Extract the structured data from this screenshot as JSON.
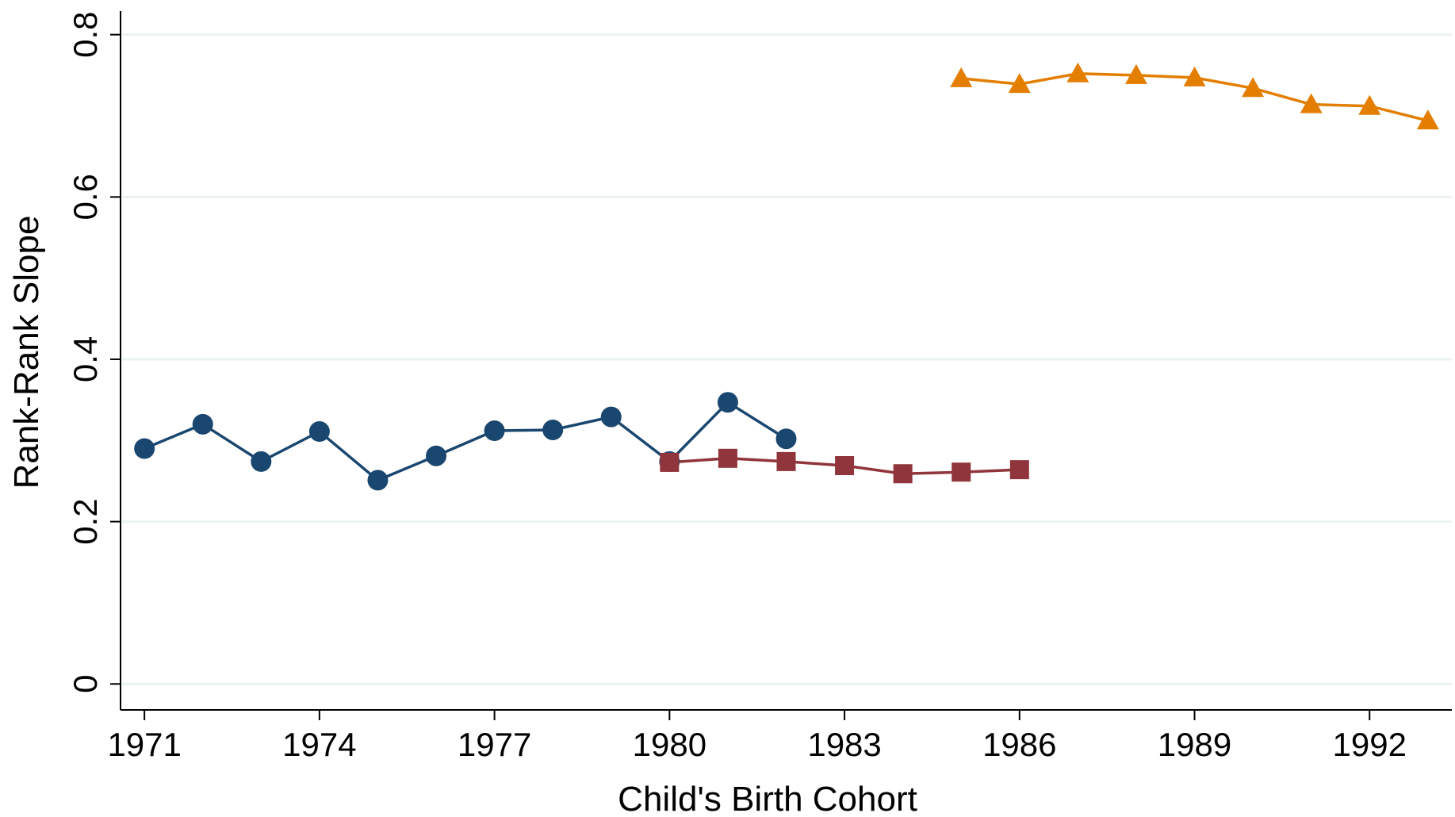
{
  "chart_data": {
    "type": "line",
    "x_label": "Child's Birth Cohort",
    "y_label": "Rank-Rank Slope",
    "x": [
      1971,
      1972,
      1973,
      1974,
      1975,
      1976,
      1977,
      1978,
      1979,
      1980,
      1981,
      1982,
      1983,
      1984,
      1985,
      1986,
      1987,
      1988,
      1989,
      1990,
      1991,
      1992,
      1993
    ],
    "series": [
      {
        "color": "#1a476f",
        "marker": "circle",
        "values": [
          0.29,
          0.32,
          0.274,
          0.311,
          0.251,
          0.281,
          0.312,
          0.313,
          0.329,
          0.274,
          0.347,
          0.302,
          null,
          null,
          null,
          null,
          null,
          null,
          null,
          null,
          null,
          null,
          null
        ]
      },
      {
        "color": "#90353b",
        "marker": "square",
        "values": [
          null,
          null,
          null,
          null,
          null,
          null,
          null,
          null,
          null,
          0.273,
          0.278,
          0.274,
          0.269,
          0.259,
          0.261,
          0.264,
          null,
          null,
          null,
          null,
          null,
          null,
          null
        ]
      },
      {
        "color": "#e37e00",
        "marker": "triangle",
        "values": [
          null,
          null,
          null,
          null,
          null,
          null,
          null,
          null,
          null,
          null,
          null,
          null,
          null,
          null,
          0.746,
          0.739,
          0.752,
          0.75,
          0.747,
          0.734,
          0.714,
          0.712,
          0.694
        ]
      }
    ],
    "xlim": [
      1970.59,
      1993.41
    ],
    "ylim": [
      -0.032,
      0.829
    ],
    "xticks": [
      1971,
      1974,
      1977,
      1980,
      1983,
      1986,
      1989,
      1992
    ],
    "yticks": [
      0,
      0.2,
      0.4,
      0.6,
      0.8
    ],
    "grid": true
  }
}
